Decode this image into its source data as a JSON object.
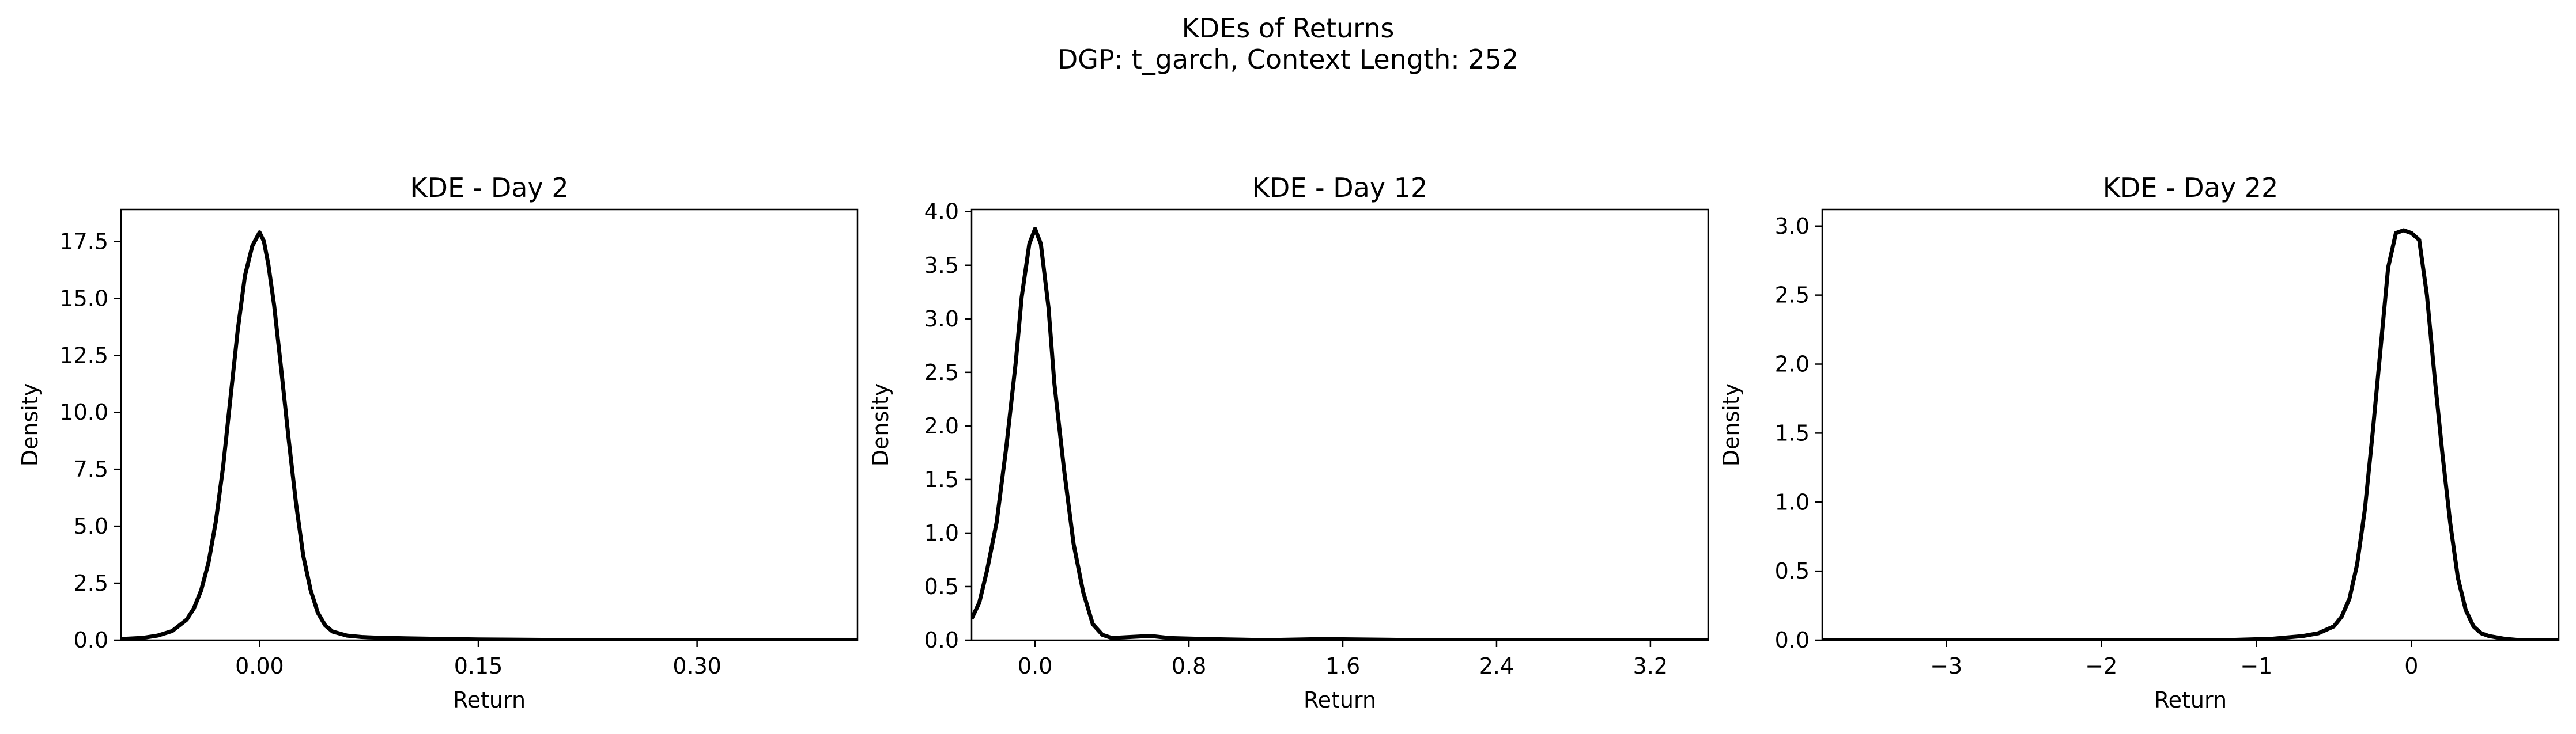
{
  "figure": {
    "title": "KDEs of Returns",
    "subtitle": "DGP: t_garch, Context Length: 252"
  },
  "chart_data": [
    {
      "type": "line",
      "title": "KDE - Day 2",
      "xlabel": "Return",
      "ylabel": "Density",
      "xlim": [
        -0.095,
        0.41
      ],
      "ylim": [
        0,
        18.9
      ],
      "xticks": [
        0.0,
        0.15,
        0.3
      ],
      "xtick_labels": [
        "0.00",
        "0.15",
        "0.30"
      ],
      "yticks": [
        0,
        2.5,
        5,
        7.5,
        10,
        12.5,
        15,
        17.5
      ],
      "ytick_labels": [
        "0.0",
        "2.5",
        "5.0",
        "7.5",
        "10.0",
        "12.5",
        "15.0",
        "17.5"
      ],
      "grid": false,
      "series": [
        {
          "color": "#000000",
          "x": [
            -0.095,
            -0.08,
            -0.07,
            -0.06,
            -0.05,
            -0.045,
            -0.04,
            -0.035,
            -0.03,
            -0.025,
            -0.02,
            -0.015,
            -0.01,
            -0.005,
            0.0,
            0.003,
            0.006,
            0.01,
            0.015,
            0.02,
            0.025,
            0.03,
            0.035,
            0.04,
            0.045,
            0.05,
            0.06,
            0.07,
            0.08,
            0.1,
            0.12,
            0.15,
            0.2,
            0.3,
            0.41
          ],
          "y": [
            0.05,
            0.1,
            0.2,
            0.4,
            0.9,
            1.4,
            2.2,
            3.4,
            5.2,
            7.6,
            10.6,
            13.6,
            16.0,
            17.3,
            17.9,
            17.5,
            16.5,
            14.7,
            11.8,
            8.8,
            6.0,
            3.7,
            2.2,
            1.2,
            0.65,
            0.38,
            0.2,
            0.14,
            0.11,
            0.08,
            0.06,
            0.03,
            0.01,
            0.0,
            0.0
          ]
        }
      ]
    },
    {
      "type": "line",
      "title": "KDE - Day 12",
      "xlabel": "Return",
      "ylabel": "Density",
      "xlim": [
        -0.33,
        3.5
      ],
      "ylim": [
        0,
        4.02
      ],
      "xticks": [
        0.0,
        0.8,
        1.6,
        2.4,
        3.2
      ],
      "xtick_labels": [
        "0.0",
        "0.8",
        "1.6",
        "2.4",
        "3.2"
      ],
      "yticks": [
        0,
        0.5,
        1,
        1.5,
        2,
        2.5,
        3,
        3.5,
        4
      ],
      "ytick_labels": [
        "0.0",
        "0.5",
        "1.0",
        "1.5",
        "2.0",
        "2.5",
        "3.0",
        "3.5",
        "4.0"
      ],
      "grid": false,
      "series": [
        {
          "color": "#000000",
          "x": [
            -0.33,
            -0.29,
            -0.25,
            -0.2,
            -0.15,
            -0.1,
            -0.07,
            -0.03,
            0.0,
            0.03,
            0.07,
            0.1,
            0.15,
            0.2,
            0.25,
            0.3,
            0.35,
            0.4,
            0.5,
            0.6,
            0.7,
            0.9,
            1.2,
            1.5,
            2.0,
            3.0,
            3.5
          ],
          "y": [
            0.2,
            0.35,
            0.65,
            1.1,
            1.8,
            2.6,
            3.2,
            3.7,
            3.84,
            3.7,
            3.1,
            2.4,
            1.6,
            0.9,
            0.45,
            0.15,
            0.05,
            0.02,
            0.03,
            0.04,
            0.02,
            0.01,
            0.0,
            0.01,
            0.0,
            0.0,
            0.0
          ]
        }
      ]
    },
    {
      "type": "line",
      "title": "KDE - Day 22",
      "xlabel": "Return",
      "ylabel": "Density",
      "xlim": [
        -3.8,
        0.95
      ],
      "ylim": [
        0,
        3.12
      ],
      "xticks": [
        -3,
        -2,
        -1,
        0
      ],
      "xtick_labels": [
        "−3",
        "−2",
        "−1",
        "0"
      ],
      "yticks": [
        0,
        0.5,
        1,
        1.5,
        2,
        2.5,
        3
      ],
      "ytick_labels": [
        "0.0",
        "0.5",
        "1.0",
        "1.5",
        "2.0",
        "2.5",
        "3.0"
      ],
      "grid": false,
      "series": [
        {
          "color": "#000000",
          "x": [
            -3.8,
            -3.0,
            -2.0,
            -1.2,
            -0.9,
            -0.7,
            -0.6,
            -0.5,
            -0.45,
            -0.4,
            -0.35,
            -0.3,
            -0.25,
            -0.2,
            -0.15,
            -0.1,
            -0.05,
            0.0,
            0.05,
            0.1,
            0.15,
            0.2,
            0.25,
            0.3,
            0.35,
            0.4,
            0.45,
            0.5,
            0.6,
            0.7,
            0.95
          ],
          "y": [
            0.0,
            0.0,
            0.0,
            0.0,
            0.01,
            0.03,
            0.05,
            0.1,
            0.17,
            0.3,
            0.55,
            0.95,
            1.5,
            2.1,
            2.7,
            2.95,
            2.97,
            2.95,
            2.9,
            2.5,
            1.9,
            1.35,
            0.85,
            0.45,
            0.22,
            0.1,
            0.05,
            0.03,
            0.01,
            0.0,
            0.0
          ]
        }
      ]
    }
  ]
}
